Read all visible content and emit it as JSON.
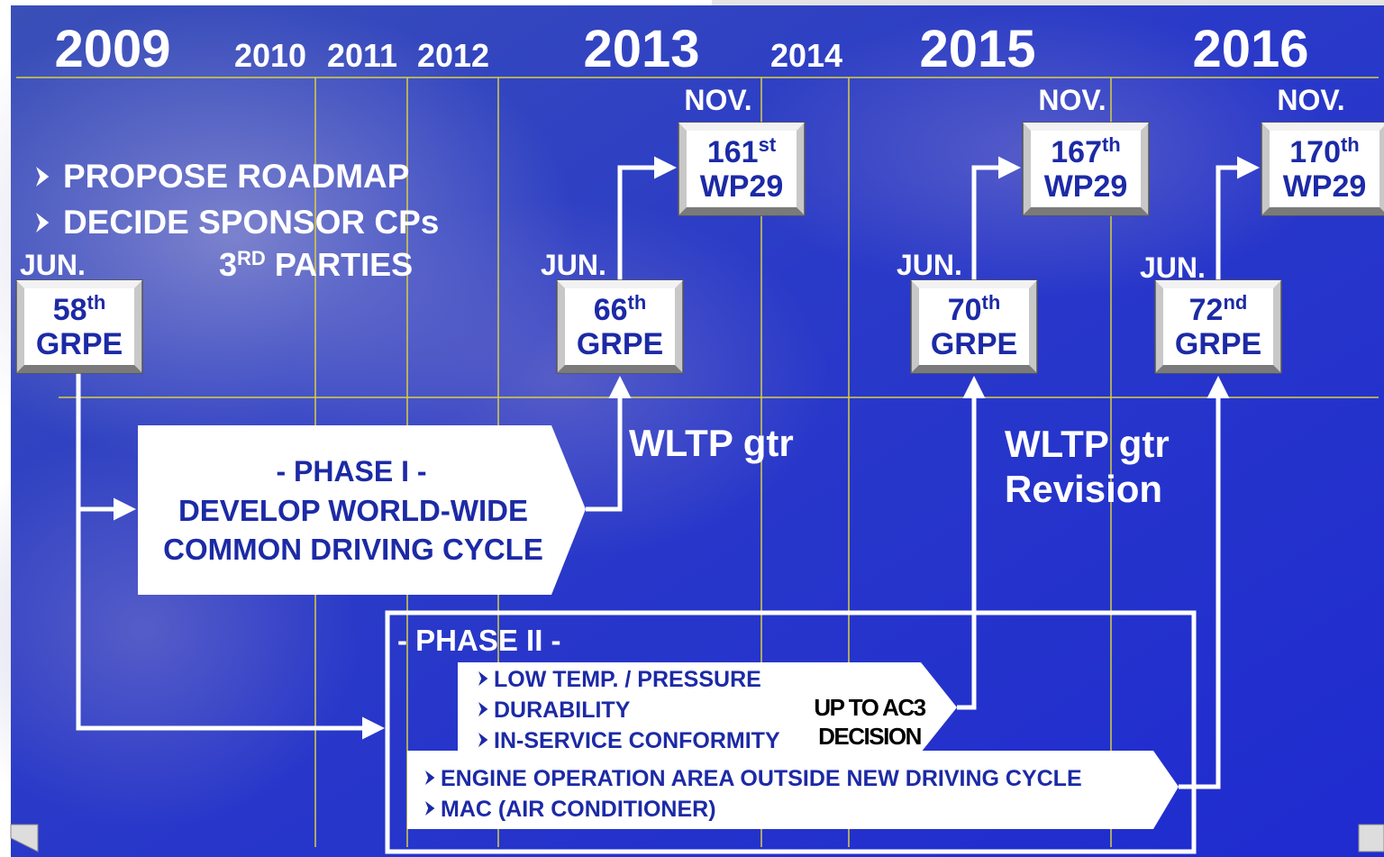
{
  "years": [
    "2009",
    "2010",
    "2011",
    "2012",
    "2013",
    "2014",
    "2015",
    "2016"
  ],
  "meetings": [
    {
      "month": "JUN.",
      "number": "58",
      "suffix": "th",
      "body": "GRPE"
    },
    {
      "month": "JUN.",
      "number": "66",
      "suffix": "th",
      "body": "GRPE"
    },
    {
      "month": "JUN.",
      "number": "70",
      "suffix": "th",
      "body": "GRPE"
    },
    {
      "month": "JUN.",
      "number": "72",
      "suffix": "nd",
      "body": "GRPE"
    },
    {
      "month": "NOV.",
      "number": "161",
      "suffix": "st",
      "body": "WP29"
    },
    {
      "month": "NOV.",
      "number": "167",
      "suffix": "th",
      "body": "WP29"
    },
    {
      "month": "NOV.",
      "number": "170",
      "suffix": "th",
      "body": "WP29"
    }
  ],
  "tasks": [
    "PROPOSE ROADMAP",
    "DECIDE SPONSOR CPs"
  ],
  "parties": {
    "base": "3",
    "suffix": "RD",
    "text": "PARTIES"
  },
  "phase1": {
    "title": "- PHASE I -",
    "lines": [
      "DEVELOP WORLD-WIDE",
      "COMMON DRIVING CYCLE"
    ]
  },
  "outputs": [
    [
      "WLTP gtr"
    ],
    [
      "WLTP gtr",
      "Revision"
    ]
  ],
  "phase2": {
    "title": "- PHASE II -",
    "group1": [
      "LOW TEMP. / PRESSURE",
      "DURABILITY",
      "IN-SERVICE CONFORMITY"
    ],
    "decision": [
      "UP TO AC3",
      "DECISION"
    ],
    "group2": [
      "ENGINE OPERATION AREA OUTSIDE NEW DRIVING CYCLE",
      "MAC (AIR CONDITIONER)"
    ]
  }
}
